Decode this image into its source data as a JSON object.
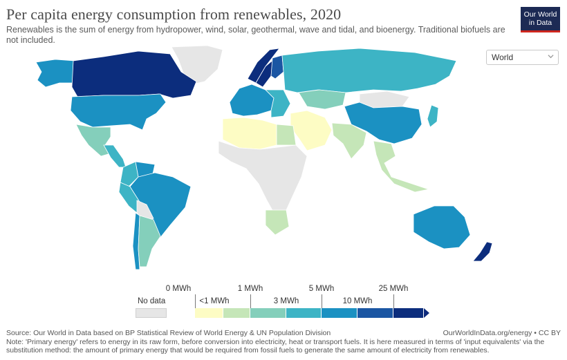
{
  "header": {
    "title": "Per capita energy consumption from renewables, 2020",
    "subtitle": "Renewables is the sum of energy from hydropower, wind, solar, geothermal, wave and tidal, and bioenergy. Traditional biofuels are not included."
  },
  "logo": {
    "line1": "Our World",
    "line2": "in Data"
  },
  "region_selector": {
    "value": "World"
  },
  "colors": {
    "no_data": "#e6e6e6",
    "lt1": "#fdfcc4",
    "1to3": "#c5e6b8",
    "3to5": "#84cfbb",
    "5to10": "#3db4c5",
    "10to25": "#1b91c2",
    "gt25": "#1b56a3",
    "max": "#0c2d7d"
  },
  "legend": {
    "no_data_label": "No data",
    "ticks_top": [
      "0 MWh",
      "1 MWh",
      "5 MWh",
      "25 MWh"
    ],
    "ticks_bottom": [
      "<1 MWh",
      "3 MWh",
      "10 MWh"
    ]
  },
  "map_regions": [
    {
      "name": "Canada",
      "bin": "max"
    },
    {
      "name": "Alaska",
      "bin": "10to25"
    },
    {
      "name": "Greenland",
      "bin": "no_data"
    },
    {
      "name": "United States",
      "bin": "10to25"
    },
    {
      "name": "Mexico",
      "bin": "3to5"
    },
    {
      "name": "Central America",
      "bin": "5to10"
    },
    {
      "name": "Venezuela",
      "bin": "10to25"
    },
    {
      "name": "Colombia",
      "bin": "5to10"
    },
    {
      "name": "Brazil",
      "bin": "10to25"
    },
    {
      "name": "Peru",
      "bin": "5to10"
    },
    {
      "name": "Bolivia",
      "bin": "no_data"
    },
    {
      "name": "Argentina",
      "bin": "3to5"
    },
    {
      "name": "Chile",
      "bin": "10to25"
    },
    {
      "name": "Norway",
      "bin": "max"
    },
    {
      "name": "Sweden",
      "bin": "max"
    },
    {
      "name": "Finland",
      "bin": "gt25"
    },
    {
      "name": "Western Europe",
      "bin": "10to25"
    },
    {
      "name": "Eastern Europe",
      "bin": "5to10"
    },
    {
      "name": "Russia",
      "bin": "5to10"
    },
    {
      "name": "Kazakhstan",
      "bin": "3to5"
    },
    {
      "name": "China",
      "bin": "10to25"
    },
    {
      "name": "Mongolia",
      "bin": "no_data"
    },
    {
      "name": "India",
      "bin": "1to3"
    },
    {
      "name": "Middle East",
      "bin": "lt1"
    },
    {
      "name": "North Africa",
      "bin": "lt1"
    },
    {
      "name": "Egypt",
      "bin": "1to3"
    },
    {
      "name": "Sub-Saharan Africa",
      "bin": "no_data"
    },
    {
      "name": "South Africa",
      "bin": "1to3"
    },
    {
      "name": "Southeast Asia",
      "bin": "1to3"
    },
    {
      "name": "Japan",
      "bin": "5to10"
    },
    {
      "name": "Australia",
      "bin": "10to25"
    },
    {
      "name": "New Zealand",
      "bin": "max"
    }
  ],
  "footer": {
    "source": "Source: Our World in Data based on BP Statistical Review of World Energy & UN Population Division",
    "url": "OurWorldInData.org/energy • CC BY",
    "note": "Note: 'Primary energy' refers to energy in its raw form, before conversion into electricity, heat or transport fuels. It is here measured in terms of 'input equivalents' via the substitution method: the amount of primary energy that would be required from fossil fuels to generate the same amount of electricity from renewables."
  }
}
